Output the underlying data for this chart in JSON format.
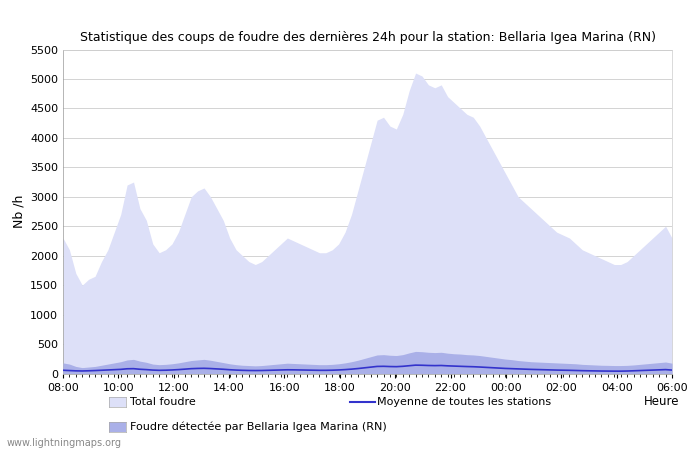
{
  "title": "Statistique des coups de foudre des dernières 24h pour la station: Bellaria Igea Marina (RN)",
  "ylabel": "Nb /h",
  "xlabel": "Heure",
  "watermark": "www.lightningmaps.org",
  "x_ticks": [
    "08:00",
    "10:00",
    "12:00",
    "14:00",
    "16:00",
    "18:00",
    "20:00",
    "22:00",
    "00:00",
    "02:00",
    "04:00",
    "06:00"
  ],
  "ylim": [
    0,
    5500
  ],
  "y_ticks": [
    0,
    500,
    1000,
    1500,
    2000,
    2500,
    3000,
    3500,
    4000,
    4500,
    5000,
    5500
  ],
  "background_color": "#ffffff",
  "plot_background": "#ffffff",
  "grid_color": "#cccccc",
  "total_foudre_color": "#dde0f8",
  "detected_foudre_color": "#aab0e8",
  "moyenne_color": "#3333cc",
  "legend_total": "Total foudre",
  "legend_moyenne": "Moyenne de toutes les stations",
  "legend_detected": "Foudre détectée par Bellaria Igea Marina (RN)",
  "total_foudre": [
    2300,
    2100,
    1700,
    1500,
    1600,
    1650,
    1900,
    2100,
    2400,
    2700,
    3200,
    3250,
    2800,
    2600,
    2200,
    2050,
    2100,
    2200,
    2400,
    2700,
    3000,
    3100,
    3150,
    3000,
    2800,
    2600,
    2300,
    2100,
    2000,
    1900,
    1850,
    1900,
    2000,
    2100,
    2200,
    2300,
    2250,
    2200,
    2150,
    2100,
    2050,
    2050,
    2100,
    2200,
    2400,
    2700,
    3100,
    3500,
    3900,
    4300,
    4350,
    4200,
    4150,
    4400,
    4800,
    5100,
    5050,
    4900,
    4850,
    4900,
    4700,
    4600,
    4500,
    4400,
    4350,
    4200,
    4000,
    3800,
    3600,
    3400,
    3200,
    3000,
    2900,
    2800,
    2700,
    2600,
    2500,
    2400,
    2350,
    2300,
    2200,
    2100,
    2050,
    2000,
    1950,
    1900,
    1850,
    1850,
    1900,
    2000,
    2100,
    2200,
    2300,
    2400,
    2500,
    2300
  ],
  "detected_foudre": [
    180,
    160,
    120,
    100,
    110,
    120,
    140,
    160,
    180,
    200,
    230,
    240,
    210,
    190,
    160,
    150,
    155,
    165,
    180,
    200,
    220,
    230,
    240,
    225,
    205,
    185,
    165,
    150,
    140,
    135,
    130,
    135,
    145,
    155,
    165,
    175,
    170,
    165,
    160,
    155,
    150,
    150,
    155,
    165,
    180,
    200,
    225,
    255,
    285,
    315,
    320,
    310,
    305,
    320,
    350,
    375,
    370,
    360,
    355,
    360,
    345,
    335,
    330,
    320,
    315,
    305,
    290,
    275,
    260,
    245,
    235,
    220,
    210,
    200,
    195,
    190,
    185,
    180,
    175,
    170,
    165,
    155,
    150,
    145,
    140,
    138,
    135,
    135,
    138,
    145,
    155,
    165,
    175,
    185,
    195,
    175
  ],
  "moyenne": [
    55,
    50,
    45,
    43,
    46,
    50,
    55,
    60,
    65,
    70,
    80,
    82,
    72,
    66,
    58,
    54,
    56,
    60,
    66,
    74,
    82,
    86,
    88,
    84,
    78,
    72,
    64,
    58,
    54,
    51,
    50,
    51,
    54,
    57,
    60,
    63,
    62,
    60,
    58,
    56,
    54,
    54,
    56,
    60,
    66,
    74,
    84,
    96,
    108,
    120,
    122,
    118,
    116,
    122,
    132,
    142,
    140,
    136,
    134,
    136,
    130,
    126,
    122,
    118,
    115,
    110,
    104,
    98,
    92,
    86,
    82,
    78,
    74,
    70,
    67,
    64,
    61,
    58,
    56,
    54,
    51,
    48,
    46,
    44,
    42,
    41,
    40,
    40,
    42,
    46,
    50,
    54,
    58,
    62,
    66,
    58
  ]
}
